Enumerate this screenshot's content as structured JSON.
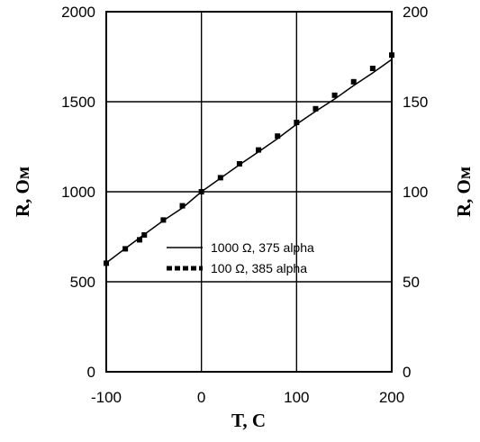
{
  "chart_data": {
    "type": "line",
    "xlabel": "T,  C",
    "ylabel": "R, Ом",
    "ylabel_right": "R, Ом",
    "xlim": [
      -100,
      200
    ],
    "ylim": [
      0,
      2000
    ],
    "ylim_right": [
      0,
      200
    ],
    "x_ticks": [
      -100,
      0,
      100,
      200
    ],
    "y_ticks": [
      0,
      500,
      1000,
      1500,
      2000
    ],
    "y_ticks_right": [
      0,
      50,
      100,
      150,
      200
    ],
    "grid": true,
    "legend_position": "center",
    "series": [
      {
        "name": "1000 Ω,  375 alpha",
        "style": "solid",
        "axis": "left",
        "x": [
          -100,
          -80,
          -60,
          -40,
          -20,
          0,
          20,
          40,
          60,
          80,
          100,
          120,
          140,
          160,
          180,
          200
        ],
        "y": [
          605,
          685,
          763,
          840,
          910,
          1000,
          1075,
          1150,
          1222,
          1295,
          1375,
          1447,
          1515,
          1590,
          1660,
          1735
        ]
      },
      {
        "name": "100 Ω,  385 alpha",
        "style": "dotted-markers",
        "axis": "right",
        "x": [
          -100,
          -80,
          -65,
          -60,
          -40,
          -20,
          0,
          20,
          40,
          60,
          80,
          100,
          120,
          140,
          160,
          180,
          200
        ],
        "y": [
          60.3,
          68.3,
          73.3,
          76.0,
          84.3,
          92.2,
          100.0,
          107.8,
          115.5,
          123.2,
          130.9,
          138.5,
          146.1,
          153.6,
          161.1,
          168.5,
          175.9
        ]
      }
    ]
  }
}
